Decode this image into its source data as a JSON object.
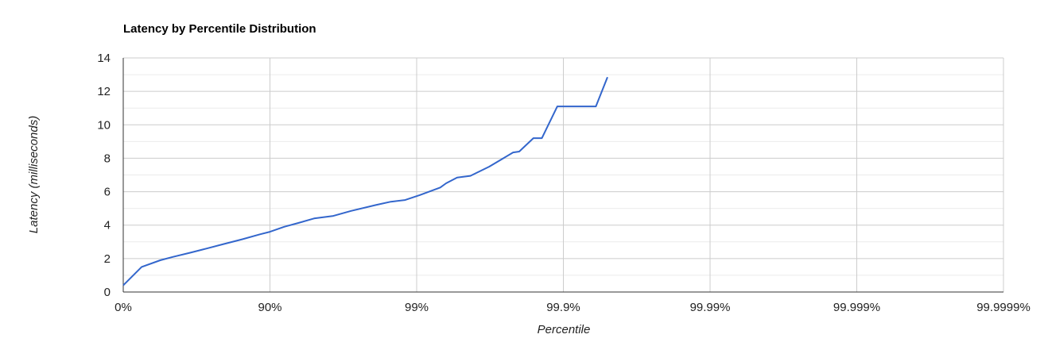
{
  "chart_data": {
    "type": "line",
    "title": "Latency by Percentile Distribution",
    "xlabel": "Percentile",
    "ylabel": "Latency (milliseconds)",
    "x_scale": "log-inverse-percentile",
    "x_ticks": [
      "0%",
      "90%",
      "99%",
      "99.9%",
      "99.99%",
      "99.999%",
      "99.9999%"
    ],
    "y_ticks": [
      "0",
      "2",
      "4",
      "6",
      "8",
      "10",
      "12",
      "14"
    ],
    "ylim": [
      0,
      14
    ],
    "grid": true,
    "color": "#3366cc",
    "series": [
      {
        "x": [
          0,
          25,
          44,
          54,
          65,
          73,
          79,
          84.5,
          88.3,
          90,
          92,
          93.7,
          95,
          96.3,
          97.2,
          98.1,
          98.5,
          98.8,
          99.05,
          99.31,
          99.37,
          99.47,
          99.57,
          99.68,
          99.78,
          99.8,
          99.84,
          99.86,
          99.89,
          99.9,
          99.94,
          99.95
        ],
        "y": [
          0.4,
          1.5,
          1.9,
          2.1,
          2.35,
          2.6,
          2.85,
          3.15,
          3.45,
          3.6,
          3.9,
          4.15,
          4.4,
          4.55,
          4.85,
          5.2,
          5.4,
          5.5,
          5.8,
          6.25,
          6.5,
          6.85,
          6.95,
          7.5,
          8.35,
          8.4,
          9.2,
          9.2,
          11.1,
          11.1,
          11.1,
          12.85
        ]
      }
    ]
  }
}
